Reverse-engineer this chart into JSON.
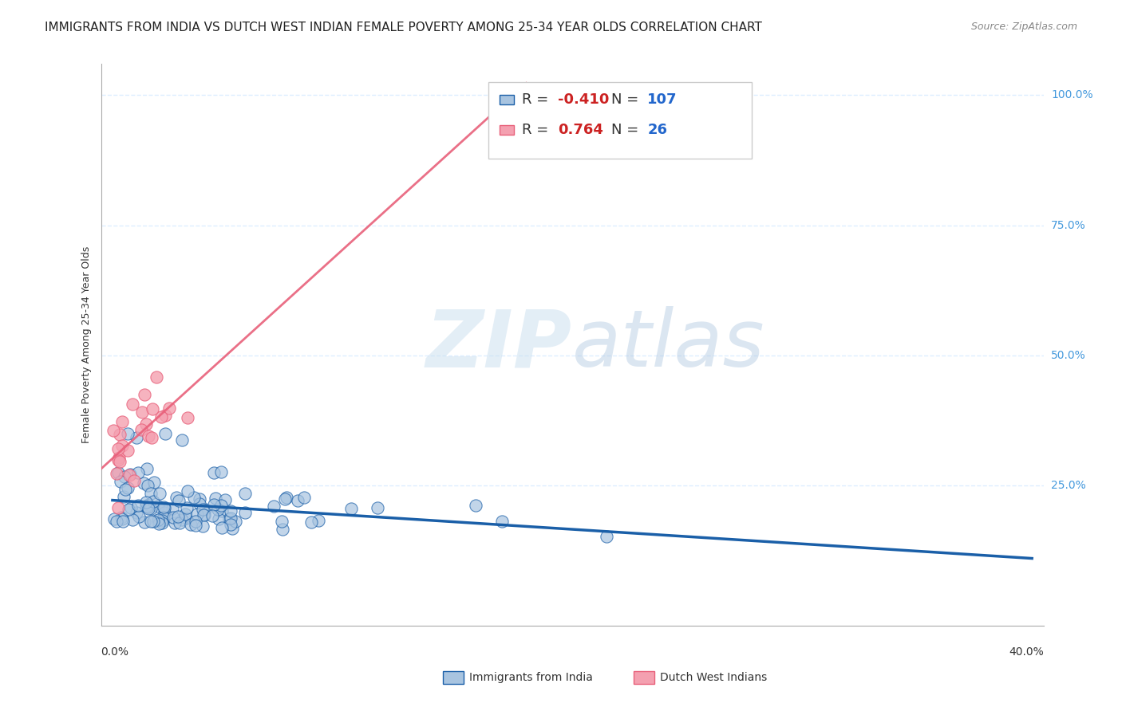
{
  "title": "IMMIGRANTS FROM INDIA VS DUTCH WEST INDIAN FEMALE POVERTY AMONG 25-34 YEAR OLDS CORRELATION CHART",
  "source": "Source: ZipAtlas.com",
  "ylabel": "Female Poverty Among 25-34 Year Olds",
  "watermark_zip": "ZIP",
  "watermark_atlas": "atlas",
  "legend": {
    "india_color": "#a8c4e0",
    "india_label": "Immigrants from India",
    "india_R": "-0.410",
    "india_N": "107",
    "dwi_color": "#f4a0b0",
    "dwi_label": "Dutch West Indians",
    "dwi_R": "0.764",
    "dwi_N": "26"
  },
  "india_line_color": "#1a5fa8",
  "dwi_line_color": "#e8607a",
  "scatter_india_color": "#a8c4e0",
  "scatter_dwi_color": "#f4a0b0",
  "background_color": "#ffffff",
  "grid_color": "#ddeeff"
}
